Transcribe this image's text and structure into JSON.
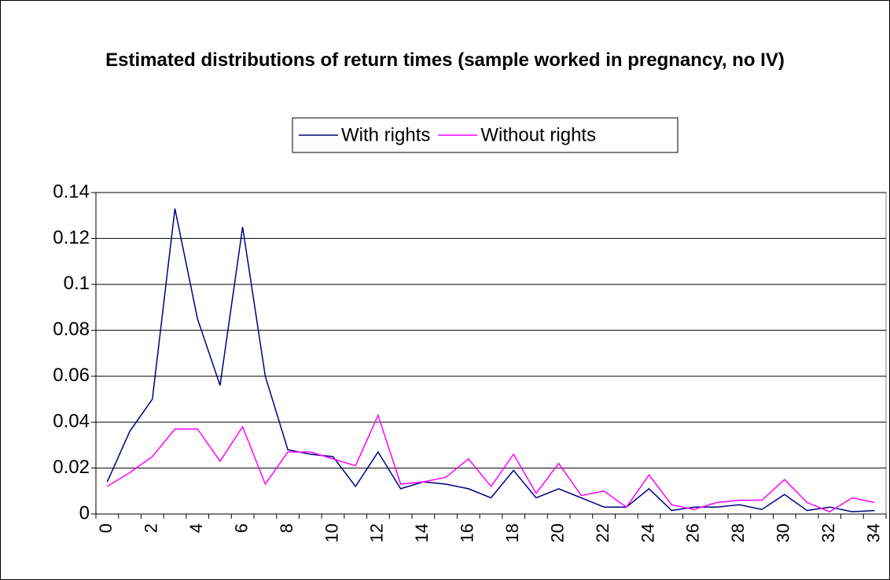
{
  "chart_data": {
    "type": "line",
    "title": "Estimated distributions of return times (sample worked in pregnancy, no IV)",
    "categories": [
      "0",
      null,
      "2",
      null,
      "4",
      null,
      "6",
      null,
      "8",
      null,
      "10",
      null,
      "12",
      null,
      "14",
      null,
      "16",
      null,
      "18",
      null,
      "20",
      null,
      "22",
      null,
      "24",
      null,
      "26",
      null,
      "28",
      null,
      "30",
      null,
      "32",
      null,
      "34"
    ],
    "series": [
      {
        "name": "With rights",
        "color": "#000080",
        "values": [
          0.014,
          0.036,
          0.05,
          0.133,
          0.085,
          0.056,
          0.125,
          0.06,
          0.028,
          0.026,
          0.025,
          0.012,
          0.027,
          0.011,
          0.014,
          0.013,
          0.011,
          0.007,
          0.019,
          0.007,
          0.011,
          0.007,
          0.003,
          0.003,
          0.011,
          0.0015,
          0.003,
          0.003,
          0.004,
          0.002,
          0.0085,
          0.0015,
          0.003,
          0.001,
          0.0015
        ]
      },
      {
        "name": "Without rights",
        "color": "#ff00ff",
        "values": [
          0.012,
          0.018,
          0.025,
          0.037,
          0.037,
          0.023,
          0.038,
          0.013,
          0.027,
          0.027,
          0.024,
          0.021,
          0.043,
          0.013,
          0.014,
          0.016,
          0.024,
          0.012,
          0.026,
          0.009,
          0.022,
          0.008,
          0.01,
          0.003,
          0.017,
          0.004,
          0.002,
          0.005,
          0.006,
          0.006,
          0.015,
          0.005,
          0.001,
          0.007,
          0.005
        ]
      }
    ],
    "ylim": [
      0,
      0.14
    ],
    "yticks": [
      0,
      0.02,
      0.04,
      0.06,
      0.08,
      0.1,
      0.12,
      0.14
    ],
    "grid": true,
    "legend": "top"
  }
}
